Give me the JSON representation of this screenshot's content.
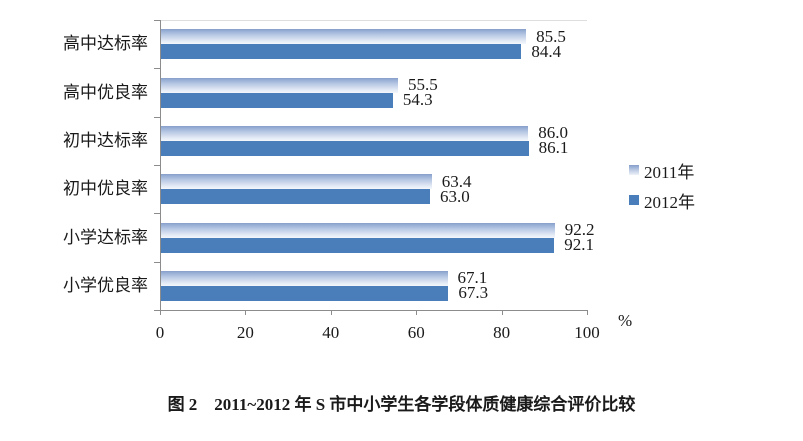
{
  "chart_data": {
    "type": "bar",
    "orientation": "horizontal",
    "categories": [
      "高中达标率",
      "高中优良率",
      "初中达标率",
      "初中优良率",
      "小学达标率",
      "小学优良率"
    ],
    "series": [
      {
        "name": "2011年",
        "style": "light-blue-gradient",
        "values": [
          85.5,
          55.5,
          86.0,
          63.4,
          92.2,
          67.1
        ],
        "labels": [
          "85.5",
          "55.5",
          "86.0",
          "63.4",
          "92.2",
          "67.1"
        ]
      },
      {
        "name": "2012年",
        "style": "solid-steel-blue",
        "color": "#4a7ebb",
        "values": [
          84.4,
          54.3,
          86.1,
          63.0,
          92.1,
          67.3
        ],
        "labels": [
          "84.4",
          "54.3",
          "86.1",
          "63.0",
          "92.1",
          "67.3"
        ]
      }
    ],
    "xlim": [
      0,
      100
    ],
    "x_ticks": [
      "0",
      "20",
      "40",
      "60",
      "80",
      "100"
    ],
    "x_unit": "%",
    "grid": false,
    "legend_position": "right",
    "value_labels": true
  },
  "legend": {
    "items": [
      "2011年",
      "2012年"
    ]
  },
  "axis": {
    "unit": "%"
  },
  "caption": "图 2　2011~2012 年 S 市中小学生各学段体质健康综合评价比较",
  "colors": {
    "series_2012": "#4a7ebb",
    "series_2011_gradient_top": "#8fa8d0",
    "series_2011_gradient_bottom": "#f4f7fb",
    "axis_line": "#8c8c8c",
    "text": "#1a1a1a"
  }
}
